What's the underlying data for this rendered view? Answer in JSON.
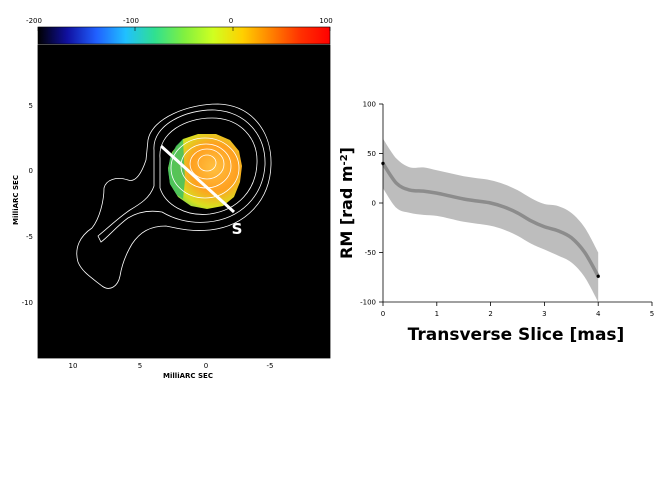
{
  "chart_data": [
    {
      "type": "heatmap",
      "colorbar": {
        "ticks": [
          "-200",
          "-100",
          "0",
          "100"
        ],
        "min": -200,
        "max": 100,
        "colors": [
          "#000000",
          "#1010a0",
          "#2060ff",
          "#20c0ff",
          "#30e090",
          "#80f040",
          "#d0ff20",
          "#ffd000",
          "#ff8000",
          "#ff3000",
          "#ff0000"
        ]
      },
      "x_ticks": [
        "10",
        "5",
        "0",
        "-5"
      ],
      "y_ticks": [
        "5",
        "0",
        "-5",
        "-10"
      ],
      "xlabel": "MilliARC SEC",
      "ylabel": "MilliARC SEC",
      "xlim": [
        12.5,
        -9.5
      ],
      "ylim": [
        -14,
        9.5
      ],
      "slice_label": "S",
      "background": "#000000"
    },
    {
      "type": "area",
      "x": [
        0,
        0.25,
        0.5,
        0.75,
        1.0,
        1.25,
        1.5,
        1.75,
        2.0,
        2.25,
        2.5,
        2.75,
        3.0,
        3.25,
        3.5,
        3.75,
        4.0
      ],
      "series": [
        {
          "values": [
            40,
            20,
            13,
            12,
            10,
            7,
            4,
            2,
            0,
            -4,
            -10,
            -18,
            -24,
            -28,
            -35,
            -50,
            -74
          ],
          "lower": [
            15,
            -5,
            -10,
            -12,
            -13,
            -16,
            -19,
            -21,
            -23,
            -27,
            -33,
            -41,
            -47,
            -53,
            -60,
            -75,
            -100
          ],
          "upper": [
            65,
            45,
            36,
            36,
            33,
            30,
            27,
            25,
            23,
            19,
            13,
            5,
            -1,
            -3,
            -10,
            -25,
            -50
          ]
        }
      ],
      "x_ticks": [
        "0",
        "1",
        "2",
        "3",
        "4",
        "5"
      ],
      "y_ticks": [
        "100",
        "50",
        "0",
        "-50",
        "-100"
      ],
      "xlabel": "Transverse Slice [mas]",
      "ylabel_parts": [
        "RM [rad m",
        "-2",
        "]"
      ],
      "xlim": [
        0,
        5
      ],
      "ylim": [
        -100,
        100
      ],
      "grid": false,
      "colors": {
        "band": "#bdbdbd",
        "line": "#8c8c8c",
        "marker": "#000000"
      }
    }
  ]
}
